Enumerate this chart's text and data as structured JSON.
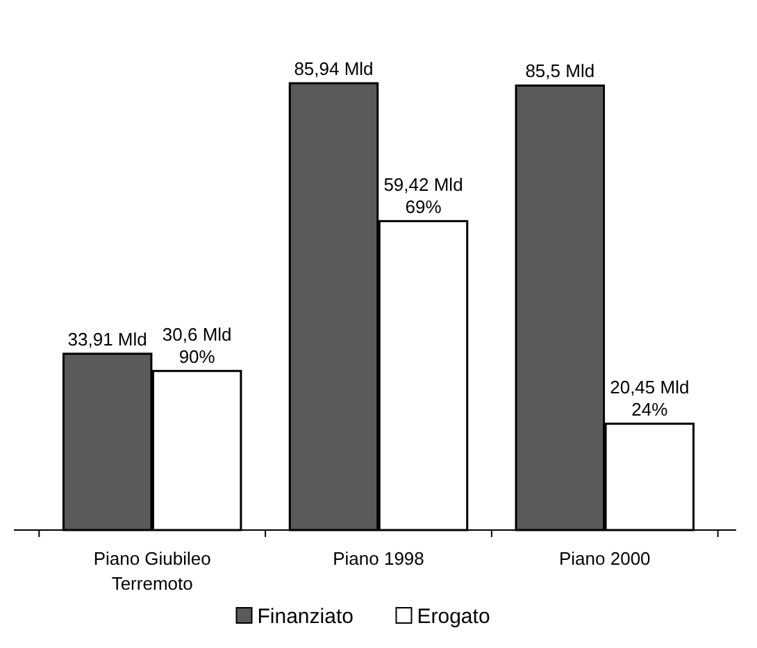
{
  "chart_data": {
    "type": "bar",
    "categories": [
      "Piano Giubileo Terremoto",
      "Piano 1998",
      "Piano 2000"
    ],
    "legend": "bottom",
    "series": [
      {
        "name": "Finanziato",
        "color": "#5a5a5a",
        "values": [
          33.91,
          85.94,
          85.5
        ],
        "value_labels": [
          "33,91 Mld",
          "85,94 Mld",
          "85,5 Mld"
        ]
      },
      {
        "name": "Erogato",
        "color": "#ffffff",
        "values": [
          30.6,
          59.42,
          20.45
        ],
        "value_labels": [
          "30,6 Mld\n90%",
          "59,42 Mld\n69%",
          "20,45 Mld\n24%"
        ]
      }
    ]
  }
}
